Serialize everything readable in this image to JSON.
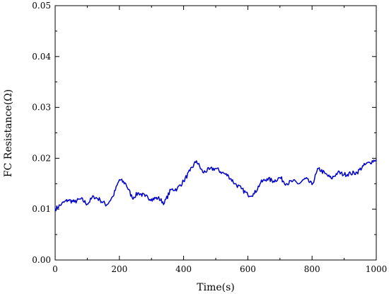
{
  "chart_data": {
    "type": "line",
    "title": "",
    "xlabel": "Time(s)",
    "ylabel": "FC Resistance(Ω)",
    "xlim": [
      0,
      1000
    ],
    "ylim": [
      0.0,
      0.05
    ],
    "x_ticks": [
      0,
      200,
      400,
      600,
      800,
      1000
    ],
    "x_tick_labels": [
      "0",
      "200",
      "400",
      "600",
      "800",
      "1000"
    ],
    "y_ticks": [
      0.0,
      0.01,
      0.02,
      0.03,
      0.04,
      0.05
    ],
    "y_tick_labels": [
      "0.00",
      "0.01",
      "0.02",
      "0.03",
      "0.04",
      "0.05"
    ],
    "grid": false,
    "legend": "none",
    "line_color": "#0000cc",
    "series": [
      {
        "x": [
          0,
          20,
          40,
          60,
          80,
          100,
          120,
          140,
          160,
          180,
          200,
          220,
          240,
          260,
          280,
          300,
          320,
          340,
          360,
          380,
          400,
          420,
          440,
          460,
          480,
          500,
          520,
          540,
          560,
          580,
          600,
          620,
          640,
          660,
          680,
          700,
          720,
          740,
          760,
          780,
          800,
          820,
          840,
          860,
          880,
          900,
          920,
          940,
          960,
          980,
          1000
        ],
        "y": [
          0.01,
          0.011,
          0.0118,
          0.0114,
          0.012,
          0.011,
          0.0125,
          0.0118,
          0.0108,
          0.0125,
          0.0158,
          0.015,
          0.0122,
          0.0132,
          0.0125,
          0.012,
          0.0122,
          0.0112,
          0.0138,
          0.014,
          0.0155,
          0.0175,
          0.0195,
          0.0172,
          0.0178,
          0.018,
          0.0172,
          0.0165,
          0.015,
          0.014,
          0.0128,
          0.013,
          0.0152,
          0.016,
          0.0155,
          0.0162,
          0.015,
          0.0155,
          0.015,
          0.016,
          0.0148,
          0.018,
          0.017,
          0.016,
          0.0172,
          0.0168,
          0.017,
          0.0172,
          0.0185,
          0.0192,
          0.0198
        ]
      }
    ]
  }
}
